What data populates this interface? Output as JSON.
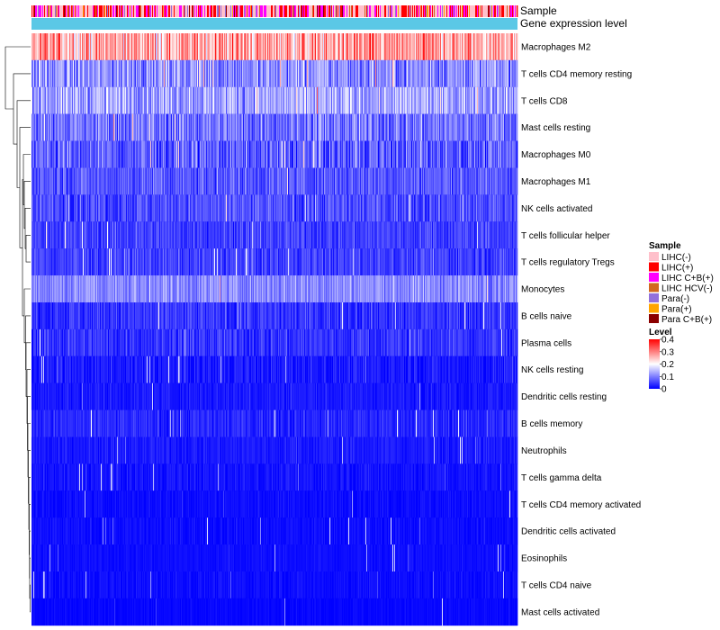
{
  "chart_data": {
    "type": "heatmap",
    "title": "",
    "annotations": [
      {
        "name": "Sample",
        "color": "#f08fc4"
      },
      {
        "name": "Gene expression level",
        "color": "#5bc8e6"
      }
    ],
    "row_labels": [
      "Macrophages M2",
      "T cells CD4 memory resting",
      "T cells CD8",
      "Mast cells resting",
      "Macrophages M0",
      "Macrophages M1",
      "NK cells activated",
      "T cells follicular helper",
      "T cells regulatory  Tregs",
      "Monocytes",
      "B cells naive",
      "Plasma cells",
      "NK cells resting",
      "Dendritic cells resting",
      "B cells memory",
      "Neutrophils",
      "T cells gamma delta",
      "T cells CD4 memory activated",
      "Dendritic cells activated",
      "Eosinophils",
      "T cells CD4 naive",
      "Mast cells activated"
    ],
    "row_mean_level": [
      0.27,
      0.11,
      0.13,
      0.09,
      0.07,
      0.07,
      0.06,
      0.05,
      0.05,
      0.11,
      0.04,
      0.04,
      0.02,
      0.02,
      0.03,
      0.02,
      0.015,
      0.01,
      0.01,
      0.01,
      0.01,
      0.005
    ],
    "row_spread": [
      0.1,
      0.08,
      0.07,
      0.07,
      0.07,
      0.05,
      0.05,
      0.04,
      0.04,
      0.05,
      0.04,
      0.04,
      0.03,
      0.02,
      0.03,
      0.02,
      0.02,
      0.015,
      0.015,
      0.01,
      0.015,
      0.01
    ],
    "n_samples": 540,
    "sample_legend": {
      "title": "Sample",
      "entries": [
        {
          "label": "LIHC(-)",
          "color": "#ffc0cb"
        },
        {
          "label": "LIHC(+)",
          "color": "#ff0000"
        },
        {
          "label": "LIHC C+B(+)",
          "color": "#ff00ff"
        },
        {
          "label": "LIHC HCV(-)",
          "color": "#d2691e"
        },
        {
          "label": "Para(-)",
          "color": "#9370db"
        },
        {
          "label": "Para(+)",
          "color": "#ffa500"
        },
        {
          "label": "Para C+B(+)",
          "color": "#8b0000"
        }
      ]
    },
    "level_legend": {
      "title": "Level",
      "range": [
        0,
        0.4
      ],
      "ticks": [
        {
          "value": 0.4,
          "label": "0.4"
        },
        {
          "value": 0.3,
          "label": "0.3"
        },
        {
          "value": 0.2,
          "label": "0.2"
        },
        {
          "value": 0.1,
          "label": "0.1"
        },
        {
          "value": 0,
          "label": "0"
        }
      ],
      "colors": {
        "low": "#0000ff",
        "mid": "#ffffff",
        "high": "#ff0000",
        "mid_value": 0.2
      }
    }
  }
}
